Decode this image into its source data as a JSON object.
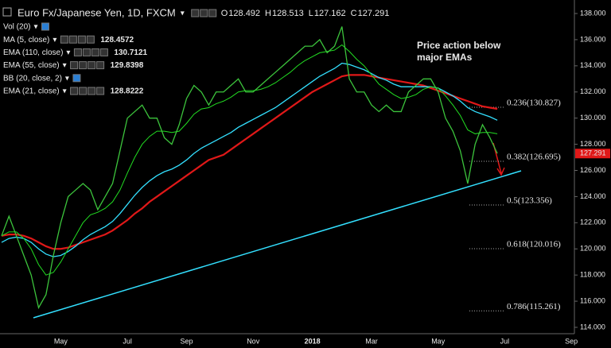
{
  "header": {
    "title": "Euro Fx/Japanese Yen, 1D, FXCM",
    "ohlc": [
      {
        "label": "O",
        "value": 128.492
      },
      {
        "label": "H",
        "value": 128.513
      },
      {
        "label": "L",
        "value": 127.162
      },
      {
        "label": "C",
        "value": 127.291
      }
    ],
    "indicators": [
      {
        "name": "Vol (20)"
      },
      {
        "name": "MA (5, close)",
        "value": 128.4572,
        "color": "#ffff33"
      },
      {
        "name": "EMA (110, close)",
        "value": 130.7121,
        "color": "#ff3333"
      },
      {
        "name": "EMA (55, close)",
        "value": 129.8398,
        "color": "#33e0ff"
      },
      {
        "name": "BB (20, close, 2)"
      },
      {
        "name": "EMA (21, close)",
        "value": 128.8222,
        "color": "#33dd33"
      }
    ]
  },
  "chart_data": {
    "type": "line",
    "annotation": [
      "Price action below",
      "major EMAs"
    ],
    "categories": [
      null,
      null,
      null,
      null,
      null,
      null,
      null,
      null,
      "May",
      null,
      null,
      null,
      null,
      null,
      null,
      null,
      null,
      "Jul",
      null,
      null,
      null,
      null,
      null,
      null,
      null,
      "Sep",
      null,
      null,
      null,
      null,
      null,
      null,
      null,
      null,
      "Nov",
      null,
      null,
      null,
      null,
      null,
      null,
      null,
      "2018",
      null,
      null,
      null,
      null,
      null,
      null,
      null,
      "Mar",
      null,
      null,
      null,
      null,
      null,
      null,
      null,
      null,
      "May",
      null,
      null,
      null,
      null,
      null,
      null,
      null,
      null,
      "Jul",
      null,
      null,
      null,
      null,
      null,
      null,
      null,
      null,
      "Sep"
    ],
    "series": [
      {
        "name": "Price",
        "color": "#3cc43c",
        "width": 1.3,
        "values": [
          121,
          122.5,
          121,
          119.5,
          118,
          115.5,
          116.5,
          119.5,
          122,
          124,
          124.5,
          125,
          124.5,
          123,
          124,
          125,
          127.5,
          130,
          130.5,
          131,
          130,
          130,
          128.5,
          128,
          129.5,
          131.5,
          132.5,
          132,
          131,
          132,
          132,
          132.5,
          133,
          132,
          132,
          132.5,
          133,
          133.5,
          134,
          134.5,
          135,
          135.5,
          135.5,
          136,
          135,
          135.5,
          137,
          133,
          132,
          132,
          131,
          130.5,
          131,
          130.5,
          130.5,
          132,
          132.5,
          133,
          133,
          132,
          130,
          129,
          127.5,
          125,
          128,
          129.5,
          128.5,
          127.3,
          null,
          null,
          null,
          null,
          null,
          null,
          null,
          null,
          null,
          null
        ]
      },
      {
        "name": "EMA 21",
        "color": "#22dd22",
        "width": 1,
        "values": [
          121,
          121.3,
          121.3,
          120.8,
          120,
          118.8,
          118,
          118.2,
          119,
          120,
          121,
          122,
          122.6,
          122.8,
          123.1,
          123.6,
          124.5,
          125.8,
          127,
          128,
          128.6,
          129,
          129,
          128.9,
          129,
          129.6,
          130.3,
          130.7,
          130.8,
          131.1,
          131.3,
          131.6,
          132,
          132.1,
          132.1,
          132.2,
          132.4,
          132.7,
          133.1,
          133.5,
          134,
          134.4,
          134.7,
          135,
          135.1,
          135.2,
          135.6,
          135.1,
          134.5,
          134,
          133.3,
          132.6,
          132.2,
          131.8,
          131.5,
          131.6,
          131.8,
          132.2,
          132.4,
          132.3,
          131.7,
          131,
          130.2,
          129.1,
          128.8,
          128.9,
          128.9,
          128.8,
          null,
          null,
          null,
          null,
          null,
          null,
          null,
          null,
          null,
          null
        ]
      },
      {
        "name": "EMA 55",
        "color": "#33e0ff",
        "width": 1.3,
        "values": [
          120.5,
          120.8,
          120.9,
          120.8,
          120.5,
          120,
          119.6,
          119.4,
          119.5,
          119.8,
          120.2,
          120.7,
          121.1,
          121.4,
          121.7,
          122.1,
          122.7,
          123.4,
          124.1,
          124.7,
          125.2,
          125.6,
          125.9,
          126.1,
          126.4,
          126.8,
          127.3,
          127.7,
          128,
          128.3,
          128.6,
          128.9,
          129.3,
          129.6,
          129.9,
          130.2,
          130.5,
          130.8,
          131.2,
          131.6,
          132,
          132.4,
          132.8,
          133.2,
          133.5,
          133.8,
          134.2,
          134.1,
          133.9,
          133.7,
          133.4,
          133.1,
          132.9,
          132.6,
          132.4,
          132.4,
          132.4,
          132.4,
          132.4,
          132.3,
          132,
          131.7,
          131.3,
          130.8,
          130.5,
          130.3,
          130.1,
          129.84,
          null,
          null,
          null,
          null,
          null,
          null,
          null,
          null,
          null,
          null
        ]
      },
      {
        "name": "EMA 110",
        "color": "#e01818",
        "width": 2.2,
        "values": [
          121,
          121.1,
          121.1,
          121,
          120.8,
          120.5,
          120.2,
          120,
          120,
          120.1,
          120.3,
          120.5,
          120.7,
          120.9,
          121.1,
          121.4,
          121.8,
          122.2,
          122.7,
          123.1,
          123.6,
          124,
          124.4,
          124.8,
          125.2,
          125.6,
          126,
          126.4,
          126.8,
          127,
          127.2,
          127.6,
          128,
          128.4,
          128.8,
          129.2,
          129.6,
          130,
          130.4,
          130.8,
          131.2,
          131.6,
          132,
          132.3,
          132.6,
          132.9,
          133.2,
          133.3,
          133.3,
          133.3,
          133.2,
          133.1,
          133,
          132.9,
          132.8,
          132.7,
          132.6,
          132.5,
          132.3,
          132.1,
          131.9,
          131.7,
          131.5,
          131.3,
          131.1,
          130.9,
          130.8,
          130.71,
          null,
          null,
          null,
          null,
          null,
          null,
          null,
          null,
          null,
          null
        ]
      }
    ],
    "ylim": [
      114,
      138
    ],
    "yticks": [
      {
        "value": 114,
        "label": "114.000"
      },
      {
        "value": 116,
        "label": "116.000"
      },
      {
        "value": 118,
        "label": "118.000"
      },
      {
        "value": 120,
        "label": "120.000"
      },
      {
        "value": 122,
        "label": "122.000"
      },
      {
        "value": 124,
        "label": "124.000"
      },
      {
        "value": 126,
        "label": "126.000"
      },
      {
        "value": 128,
        "label": "128.000"
      },
      {
        "value": 130,
        "label": "130.000"
      },
      {
        "value": 132,
        "label": "132.000"
      },
      {
        "value": 134,
        "label": "134.000"
      },
      {
        "value": 136,
        "label": "136.000"
      },
      {
        "value": 138,
        "label": "138.000"
      }
    ],
    "last_price": 127.291,
    "fibonacci": [
      {
        "value": 130.827,
        "label": "0.236(130.827)",
        "color": "#e8e8e8"
      },
      {
        "value": 126.695,
        "label": "0.382(126.695)",
        "color": "#e8e8e8"
      },
      {
        "value": 123.356,
        "label": "0.5(123.356)",
        "color": "#5b7ec9"
      },
      {
        "value": 120.016,
        "label": "0.618(120.016)",
        "color": "#e8e8e8"
      },
      {
        "value": 115.261,
        "label": "0.786(115.261)",
        "color": "#e8e8e8"
      }
    ]
  }
}
